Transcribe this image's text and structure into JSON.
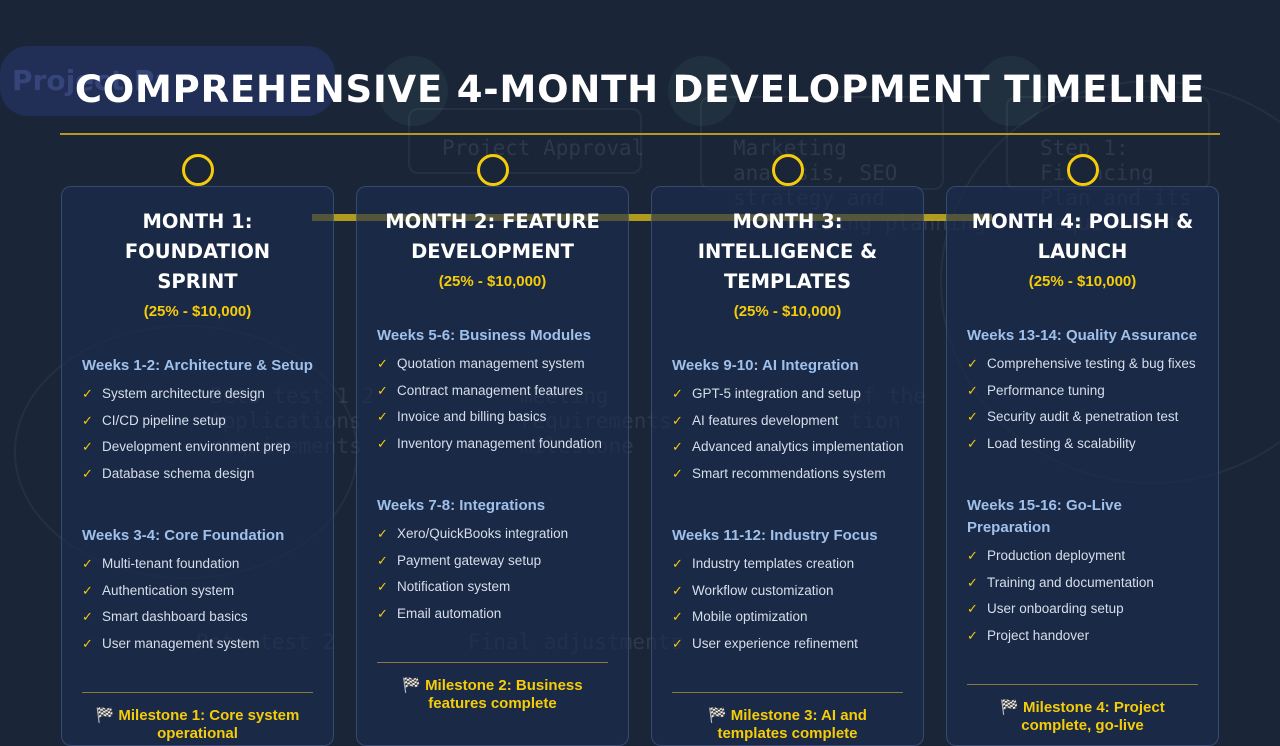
{
  "header": {
    "title": "COMPREHENSIVE 4-MONTH DEVELOPMENT TIMELINE"
  },
  "background_ghost": {
    "pill_text": "Project Pr",
    "texts": [
      "Project Approval",
      "Marketing\nanalysis, SEO\nstrategy and\nadvertising planning",
      "Step 1:\nFinancing\nPlan and its\nrequirements",
      "Beta test 1 2\nApplications\nrequirements",
      "meeting\nrequirements\nmilestone",
      "of the\ntion",
      "Beta test 2",
      "Final adjustments"
    ]
  },
  "months": [
    {
      "title": "MONTH 1: FOUNDATION SPRINT",
      "price": "(25% - $10,000)",
      "sections": [
        {
          "title": "Weeks 1-2: Architecture & Setup",
          "items": [
            "System architecture design",
            "CI/CD pipeline setup",
            "Development environment prep",
            "Database schema design"
          ]
        },
        {
          "title": "Weeks 3-4: Core Foundation",
          "items": [
            "Multi-tenant foundation",
            "Authentication system",
            "Smart dashboard basics",
            "User management system"
          ]
        }
      ],
      "milestone": "Milestone 1: Core system operational"
    },
    {
      "title": "MONTH 2: FEATURE DEVELOPMENT",
      "price": "(25% - $10,000)",
      "sections": [
        {
          "title": "Weeks 5-6: Business Modules",
          "items": [
            "Quotation management system",
            "Contract management features",
            "Invoice and billing basics",
            "Inventory management foundation"
          ]
        },
        {
          "title": "Weeks 7-8: Integrations",
          "items": [
            "Xero/QuickBooks integration",
            "Payment gateway setup",
            "Notification system",
            "Email automation"
          ]
        }
      ],
      "milestone": "Milestone 2: Business features complete"
    },
    {
      "title": "MONTH 3: INTELLIGENCE & TEMPLATES",
      "price": "(25% - $10,000)",
      "sections": [
        {
          "title": "Weeks 9-10: AI Integration",
          "items": [
            "GPT-5 integration and setup",
            "AI features development",
            "Advanced analytics implementation",
            "Smart recommendations system"
          ]
        },
        {
          "title": "Weeks 11-12: Industry Focus",
          "items": [
            "Industry templates creation",
            "Workflow customization",
            "Mobile optimization",
            "User experience refinement"
          ]
        }
      ],
      "milestone": "Milestone 3: AI and templates complete"
    },
    {
      "title": "MONTH 4: POLISH & LAUNCH",
      "price": "(25% - $10,000)",
      "sections": [
        {
          "title": "Weeks 13-14: Quality Assurance",
          "items": [
            "Comprehensive testing & bug fixes",
            "Performance tuning",
            "Security audit & penetration test",
            "Load testing & scalability"
          ]
        },
        {
          "title": "Weeks 15-16: Go-Live Preparation",
          "items": [
            "Production deployment",
            "Training and documentation",
            "User onboarding setup",
            "Project handover"
          ]
        }
      ],
      "milestone": "Milestone 4: Project complete, go-live"
    }
  ],
  "icons": {
    "check": "✓",
    "flag": "🏁"
  },
  "colors": {
    "background": "#1a2538",
    "accent_gold": "#f5cc0a",
    "section_title": "#9fc0ea",
    "card_border": "#3f5580"
  }
}
